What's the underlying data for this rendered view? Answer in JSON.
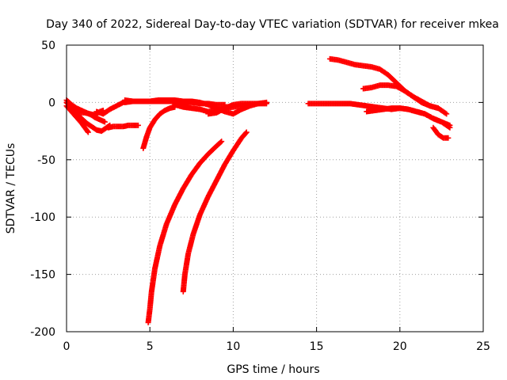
{
  "chart_data": {
    "type": "scatter",
    "title": "Day 340 of 2022, Sidereal Day-to-day VTEC variation (SDTVAR) for receiver mkea",
    "xlabel": "GPS time / hours",
    "ylabel": "SDTVAR / TECUs",
    "xlim": [
      0,
      25
    ],
    "ylim": [
      -200,
      50
    ],
    "xticks": [
      "0",
      "5",
      "10",
      "15",
      "20",
      "25"
    ],
    "yticks": [
      "50",
      "0",
      "-50",
      "-100",
      "-150",
      "-200"
    ],
    "grid": true,
    "marker": "plus",
    "color": "#ff0000",
    "series": [
      {
        "name": "s1",
        "x": [
          0.0,
          0.3,
          0.6,
          0.9,
          1.2,
          1.5,
          1.7,
          2.0,
          2.3
        ],
        "y": [
          2,
          -2,
          -5,
          -7,
          -9,
          -11,
          -13,
          -15,
          -17
        ]
      },
      {
        "name": "s2",
        "x": [
          0.0,
          0.3,
          0.6,
          0.9,
          1.2,
          1.5,
          1.8,
          2.1,
          2.4,
          2.6
        ],
        "y": [
          0,
          -5,
          -10,
          -14,
          -18,
          -21,
          -24,
          -25,
          -22,
          -20
        ]
      },
      {
        "name": "s3",
        "x": [
          0.0,
          0.3,
          0.6,
          0.9,
          1.1,
          1.3
        ],
        "y": [
          -3,
          -8,
          -13,
          -18,
          -22,
          -26
        ]
      },
      {
        "name": "s4",
        "x": [
          0.5,
          0.8,
          1.1,
          1.4,
          1.7,
          2.0,
          2.2
        ],
        "y": [
          -8,
          -9,
          -9,
          -10,
          -11,
          -8,
          -7
        ]
      },
      {
        "name": "s5",
        "x": [
          2.5,
          2.8,
          3.1,
          3.4,
          3.7,
          4.0,
          4.3
        ],
        "y": [
          -22,
          -21,
          -21,
          -21,
          -20,
          -20,
          -20
        ]
      },
      {
        "name": "s6",
        "x": [
          1.8,
          2.2,
          2.6,
          3.0,
          3.4,
          3.7
        ],
        "y": [
          -8,
          -10,
          -6,
          -3,
          0,
          1
        ]
      },
      {
        "name": "s7",
        "x": [
          3.5,
          4.0,
          4.5,
          5.0,
          5.5,
          6.0,
          6.5,
          7.0,
          7.5,
          8.0,
          8.5,
          9.0,
          9.5
        ],
        "y": [
          2,
          1,
          1,
          1,
          1,
          1,
          1,
          0,
          0,
          -1,
          -1,
          -2,
          -2
        ]
      },
      {
        "name": "s8",
        "x": [
          3.5,
          4.0,
          4.5,
          5.0,
          5.5,
          6.0,
          6.5,
          7.0,
          7.5,
          8.0,
          8.5,
          9.0,
          9.5,
          10.0,
          10.5,
          11.0,
          11.5,
          12.0
        ],
        "y": [
          0,
          1,
          1,
          1,
          2,
          2,
          2,
          1,
          1,
          0,
          -2,
          -5,
          -8,
          -10,
          -6,
          -3,
          -1,
          0
        ]
      },
      {
        "name": "s9",
        "x": [
          4.6,
          4.8,
          5.0,
          5.3,
          5.6,
          5.9,
          6.2,
          6.5
        ],
        "y": [
          -40,
          -30,
          -22,
          -15,
          -10,
          -7,
          -5,
          -4
        ]
      },
      {
        "name": "s10",
        "x": [
          4.9,
          5.0,
          5.1,
          5.3,
          5.6,
          6.0,
          6.5,
          7.0,
          7.5,
          8.0,
          8.5,
          9.0,
          9.3
        ],
        "y": [
          -192,
          -180,
          -165,
          -145,
          -125,
          -106,
          -89,
          -75,
          -63,
          -53,
          -45,
          -38,
          -34
        ]
      },
      {
        "name": "s11",
        "x": [
          7.0,
          7.1,
          7.3,
          7.6,
          8.0,
          8.5,
          9.0,
          9.5,
          10.0,
          10.5,
          10.8
        ],
        "y": [
          -165,
          -150,
          -132,
          -115,
          -98,
          -82,
          -68,
          -54,
          -42,
          -31,
          -26
        ]
      },
      {
        "name": "s12",
        "x": [
          8.5,
          9.0,
          9.5,
          10.0,
          10.5,
          11.0,
          11.5,
          12.0
        ],
        "y": [
          -10,
          -9,
          -5,
          -2,
          -1,
          -1,
          -1,
          -1
        ]
      },
      {
        "name": "s13",
        "x": [
          6.5,
          7.0,
          7.5,
          8.0,
          8.5,
          9.0,
          9.5,
          10.0,
          10.5,
          11.0
        ],
        "y": [
          -2,
          -4,
          -5,
          -6,
          -8,
          -7,
          -5,
          -4,
          -3,
          -2
        ]
      },
      {
        "name": "s14",
        "x": [
          14.5,
          15.0,
          15.5,
          16.0,
          16.5,
          17.0,
          17.5,
          18.0,
          18.5,
          19.0,
          19.5,
          20.0,
          20.5,
          21.0,
          21.5,
          22.0,
          22.5,
          23.0
        ],
        "y": [
          -1,
          -1,
          -1,
          -1,
          -1,
          -1,
          -2,
          -3,
          -4,
          -5,
          -6,
          -5,
          -6,
          -8,
          -10,
          -14,
          -17,
          -22
        ]
      },
      {
        "name": "s15",
        "x": [
          15.8,
          16.3,
          16.8,
          17.3,
          17.8,
          18.3,
          18.8,
          19.3,
          19.8,
          20.3,
          20.8,
          21.3,
          21.8,
          22.3
        ],
        "y": [
          38,
          37,
          35,
          33,
          32,
          31,
          29,
          24,
          17,
          10,
          5,
          0,
          -3,
          -5
        ]
      },
      {
        "name": "s16",
        "x": [
          17.8,
          18.3,
          18.8,
          19.3,
          19.8,
          20.3,
          20.8,
          21.3,
          21.8,
          22.3,
          22.8
        ],
        "y": [
          12,
          13,
          15,
          15,
          14,
          10,
          5,
          1,
          -3,
          -5,
          -10
        ]
      },
      {
        "name": "s17",
        "x": [
          18.0,
          18.5,
          19.0,
          19.5,
          20.0,
          20.5,
          21.0,
          21.5,
          22.0,
          22.5,
          23.0
        ],
        "y": [
          -8,
          -7,
          -6,
          -5,
          -5,
          -6,
          -8,
          -10,
          -14,
          -17,
          -20
        ]
      },
      {
        "name": "s18",
        "x": [
          22.0,
          22.3,
          22.6,
          22.9
        ],
        "y": [
          -22,
          -28,
          -31,
          -31
        ]
      }
    ]
  }
}
